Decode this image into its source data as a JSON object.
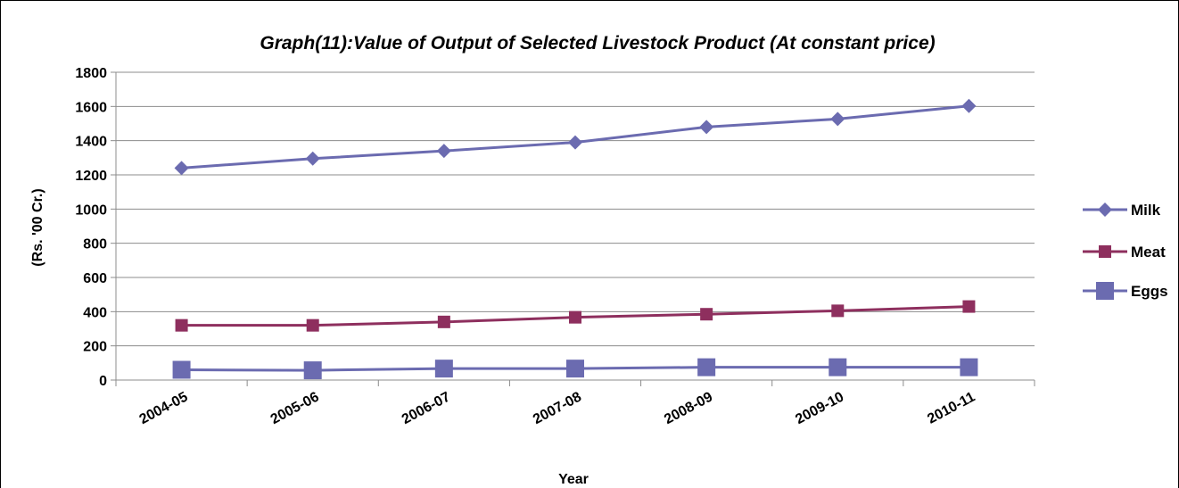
{
  "chart_data": {
    "type": "line",
    "title": "Graph(11):Value of Output of  Selected Livestock Product (At constant price)",
    "xlabel": "Year",
    "ylabel": "(Rs. '00 Cr.)",
    "categories": [
      "2004-05",
      "2005-06",
      "2006-07",
      "2007-08",
      "2008-09",
      "2009-10",
      "2010-11"
    ],
    "ylim": [
      0,
      1800
    ],
    "yticks": [
      0,
      200,
      400,
      600,
      800,
      1000,
      1200,
      1400,
      1600,
      1800
    ],
    "grid": true,
    "legend_position": "right",
    "series": [
      {
        "name": "Milk",
        "values": [
          1240,
          1295,
          1340,
          1390,
          1480,
          1527,
          1603
        ],
        "color": "#6b6bb0",
        "marker": "diamond"
      },
      {
        "name": "Meat",
        "values": [
          320,
          320,
          340,
          367,
          385,
          405,
          430
        ],
        "color": "#8e2f5e",
        "marker": "square"
      },
      {
        "name": "Eggs",
        "values": [
          60,
          57,
          67,
          67,
          75,
          75,
          75
        ],
        "color": "#6b6bb0",
        "marker": "big-square"
      }
    ]
  }
}
